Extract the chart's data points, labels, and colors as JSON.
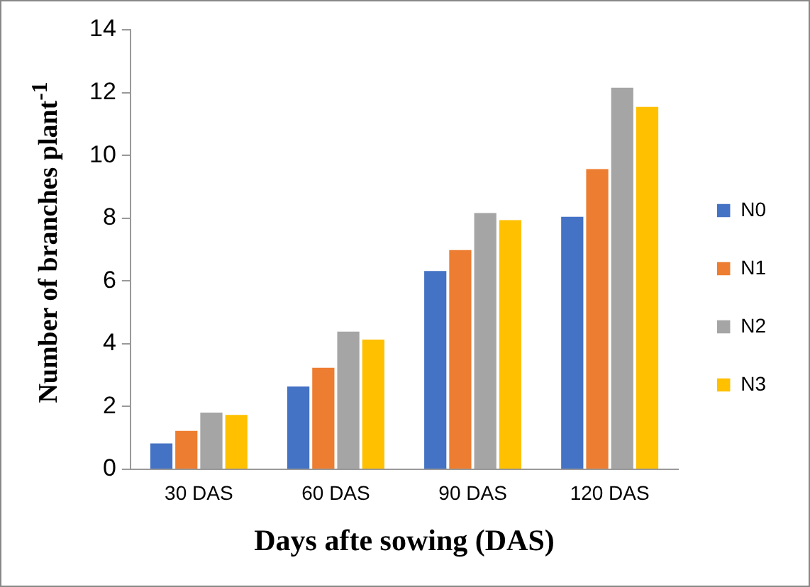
{
  "chart_data": {
    "type": "bar",
    "xlabel": "Days afte sowing (DAS)",
    "ylabel": "Number of branches plant$^{-1}$",
    "categories": [
      "30 DAS",
      "60 DAS",
      "90 DAS",
      "120 DAS"
    ],
    "series": [
      {
        "name": "N0",
        "color": "#4472c4",
        "values": [
          0.87,
          2.68,
          6.36,
          8.09
        ]
      },
      {
        "name": "N1",
        "color": "#ed7d31",
        "values": [
          1.27,
          3.28,
          7.03,
          9.61
        ]
      },
      {
        "name": "N2",
        "color": "#a5a5a5",
        "values": [
          1.85,
          4.43,
          8.21,
          12.2
        ]
      },
      {
        "name": "N3",
        "color": "#ffc000",
        "values": [
          1.78,
          4.18,
          7.98,
          11.59
        ]
      }
    ],
    "ylim": [
      0,
      14
    ],
    "yticks": [
      0,
      2,
      4,
      6,
      8,
      10,
      12,
      14
    ],
    "grid": false,
    "legend": "right"
  }
}
